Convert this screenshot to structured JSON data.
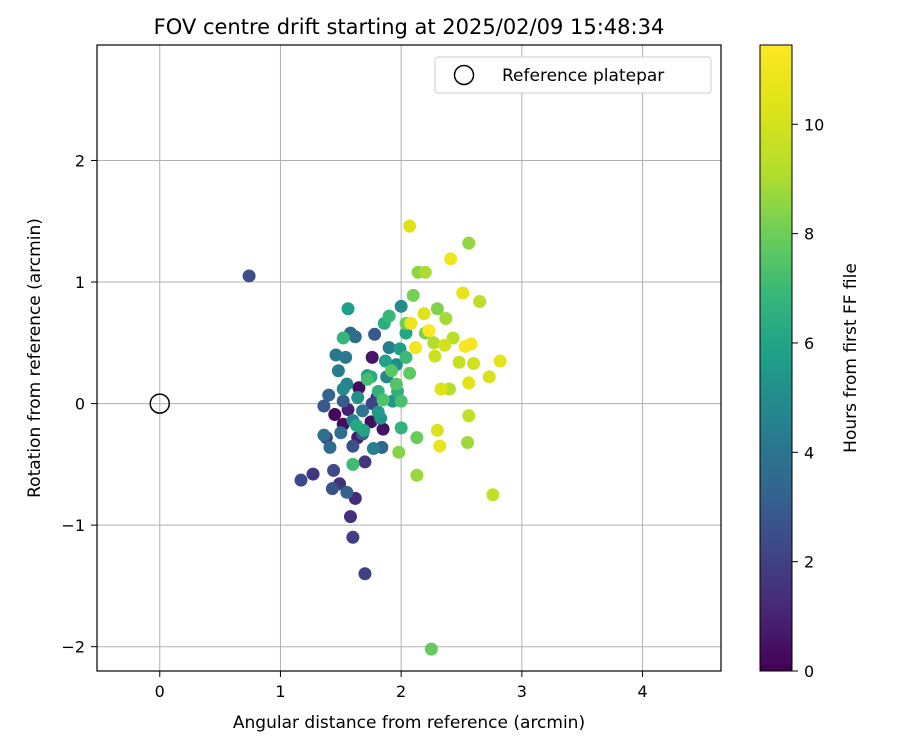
{
  "chart_data": {
    "type": "scatter",
    "title": "FOV centre drift starting at 2025/02/09 15:48:34",
    "xlabel": "Angular distance from reference (arcmin)",
    "ylabel": "Rotation from reference (arcmin)",
    "colorbar_label": "Hours from first FF file",
    "xlim": [
      -0.52,
      4.65
    ],
    "ylim": [
      -2.2,
      2.95
    ],
    "clim": [
      0,
      11.45
    ],
    "xticks": [
      0,
      1,
      2,
      3,
      4
    ],
    "yticks": [
      -2,
      -1,
      0,
      1,
      2
    ],
    "cticks": [
      0,
      2,
      4,
      6,
      8,
      10
    ],
    "grid": true,
    "colormap": "viridis",
    "legend": {
      "position": "top-right",
      "label": "Reference platepar"
    },
    "reference_point": {
      "x": 0,
      "y": 0
    },
    "points": [
      {
        "x": 1.45,
        "y": -0.09,
        "t": 0.2
      },
      {
        "x": 1.52,
        "y": -0.17,
        "t": 0.3
      },
      {
        "x": 1.65,
        "y": 0.13,
        "t": 0.3
      },
      {
        "x": 1.75,
        "y": -0.15,
        "t": 0.4
      },
      {
        "x": 1.85,
        "y": -0.21,
        "t": 0.5
      },
      {
        "x": 1.76,
        "y": 0.38,
        "t": 0.6
      },
      {
        "x": 1.64,
        "y": -0.28,
        "t": 0.8
      },
      {
        "x": 1.56,
        "y": -0.05,
        "t": 0.9
      },
      {
        "x": 1.8,
        "y": 0.05,
        "t": 1.0
      },
      {
        "x": 1.62,
        "y": -0.78,
        "t": 1.2
      },
      {
        "x": 1.58,
        "y": -0.93,
        "t": 1.4
      },
      {
        "x": 1.49,
        "y": -0.66,
        "t": 1.5
      },
      {
        "x": 1.7,
        "y": -0.48,
        "t": 1.6
      },
      {
        "x": 1.27,
        "y": -0.58,
        "t": 1.7
      },
      {
        "x": 1.38,
        "y": -0.28,
        "t": 1.8
      },
      {
        "x": 1.6,
        "y": -1.1,
        "t": 1.9
      },
      {
        "x": 1.7,
        "y": -1.4,
        "t": 2.0
      },
      {
        "x": 1.76,
        "y": 0.0,
        "t": 2.1
      },
      {
        "x": 1.17,
        "y": -0.63,
        "t": 2.3
      },
      {
        "x": 1.44,
        "y": -0.55,
        "t": 2.4
      },
      {
        "x": 0.74,
        "y": 1.05,
        "t": 2.5
      },
      {
        "x": 1.6,
        "y": -0.35,
        "t": 2.6
      },
      {
        "x": 1.43,
        "y": -0.7,
        "t": 2.7
      },
      {
        "x": 1.36,
        "y": -0.02,
        "t": 2.8
      },
      {
        "x": 1.78,
        "y": 0.57,
        "t": 2.9
      },
      {
        "x": 1.52,
        "y": 0.02,
        "t": 3.0
      },
      {
        "x": 1.68,
        "y": -0.25,
        "t": 3.1
      },
      {
        "x": 1.55,
        "y": -0.73,
        "t": 3.2
      },
      {
        "x": 1.4,
        "y": 0.07,
        "t": 3.3
      },
      {
        "x": 1.84,
        "y": -0.36,
        "t": 3.4
      },
      {
        "x": 1.58,
        "y": 0.58,
        "t": 3.5
      },
      {
        "x": 1.41,
        "y": -0.36,
        "t": 3.6
      },
      {
        "x": 1.5,
        "y": -0.24,
        "t": 3.7
      },
      {
        "x": 1.62,
        "y": 0.55,
        "t": 3.8
      },
      {
        "x": 1.36,
        "y": -0.26,
        "t": 3.9
      },
      {
        "x": 1.68,
        "y": -0.06,
        "t": 4.0
      },
      {
        "x": 1.46,
        "y": 0.4,
        "t": 4.1
      },
      {
        "x": 1.54,
        "y": 0.38,
        "t": 4.2
      },
      {
        "x": 1.48,
        "y": 0.27,
        "t": 4.3
      },
      {
        "x": 1.9,
        "y": 0.46,
        "t": 4.4
      },
      {
        "x": 1.77,
        "y": -0.37,
        "t": 4.5
      },
      {
        "x": 1.6,
        "y": -0.14,
        "t": 4.6
      },
      {
        "x": 1.55,
        "y": 0.16,
        "t": 4.7
      },
      {
        "x": 1.88,
        "y": 0.22,
        "t": 4.8
      },
      {
        "x": 1.52,
        "y": 0.12,
        "t": 4.9
      },
      {
        "x": 2.0,
        "y": 0.8,
        "t": 5.0
      },
      {
        "x": 1.96,
        "y": 0.32,
        "t": 5.1
      },
      {
        "x": 1.64,
        "y": 0.05,
        "t": 5.2
      },
      {
        "x": 1.83,
        "y": -0.12,
        "t": 5.3
      },
      {
        "x": 1.93,
        "y": 0.02,
        "t": 5.4
      },
      {
        "x": 1.72,
        "y": 0.23,
        "t": 5.5
      },
      {
        "x": 1.81,
        "y": -0.07,
        "t": 5.6
      },
      {
        "x": 1.99,
        "y": 0.45,
        "t": 5.7
      },
      {
        "x": 1.56,
        "y": 0.78,
        "t": 5.8
      },
      {
        "x": 1.87,
        "y": 0.35,
        "t": 5.9
      },
      {
        "x": 1.69,
        "y": -0.22,
        "t": 6.0
      },
      {
        "x": 2.04,
        "y": 0.58,
        "t": 6.1
      },
      {
        "x": 1.63,
        "y": -0.18,
        "t": 6.2
      },
      {
        "x": 1.75,
        "y": 0.22,
        "t": 6.3
      },
      {
        "x": 1.86,
        "y": 0.66,
        "t": 6.4
      },
      {
        "x": 1.97,
        "y": 0.1,
        "t": 6.5
      },
      {
        "x": 1.81,
        "y": 0.1,
        "t": 6.6
      },
      {
        "x": 2.0,
        "y": -0.2,
        "t": 6.7
      },
      {
        "x": 1.52,
        "y": 0.54,
        "t": 6.8
      },
      {
        "x": 1.9,
        "y": 0.72,
        "t": 6.9
      },
      {
        "x": 2.04,
        "y": 0.38,
        "t": 7.0
      },
      {
        "x": 1.6,
        "y": -0.5,
        "t": 7.1
      },
      {
        "x": 1.72,
        "y": 0.2,
        "t": 7.2
      },
      {
        "x": 2.0,
        "y": 0.02,
        "t": 7.3
      },
      {
        "x": 1.85,
        "y": 0.03,
        "t": 7.4
      },
      {
        "x": 1.96,
        "y": 0.16,
        "t": 7.5
      },
      {
        "x": 1.92,
        "y": 0.27,
        "t": 7.6
      },
      {
        "x": 2.07,
        "y": 0.25,
        "t": 7.7
      },
      {
        "x": 2.25,
        "y": -2.02,
        "t": 7.8
      },
      {
        "x": 2.13,
        "y": -0.28,
        "t": 7.9
      },
      {
        "x": 2.04,
        "y": 0.66,
        "t": 8.0
      },
      {
        "x": 2.1,
        "y": 0.89,
        "t": 8.1
      },
      {
        "x": 2.2,
        "y": 0.58,
        "t": 8.2
      },
      {
        "x": 2.3,
        "y": 0.78,
        "t": 8.3
      },
      {
        "x": 1.98,
        "y": -0.4,
        "t": 8.4
      },
      {
        "x": 2.14,
        "y": 1.08,
        "t": 8.5
      },
      {
        "x": 2.56,
        "y": 1.32,
        "t": 8.6
      },
      {
        "x": 2.13,
        "y": -0.59,
        "t": 8.7
      },
      {
        "x": 2.55,
        "y": -0.32,
        "t": 8.8
      },
      {
        "x": 2.37,
        "y": 0.7,
        "t": 8.9
      },
      {
        "x": 2.2,
        "y": 1.08,
        "t": 9.0
      },
      {
        "x": 2.27,
        "y": 0.5,
        "t": 9.1
      },
      {
        "x": 2.4,
        "y": 0.12,
        "t": 9.2
      },
      {
        "x": 2.43,
        "y": 0.54,
        "t": 9.3
      },
      {
        "x": 2.65,
        "y": 0.84,
        "t": 9.4
      },
      {
        "x": 2.56,
        "y": -0.1,
        "t": 9.5
      },
      {
        "x": 2.76,
        "y": -0.75,
        "t": 9.6
      },
      {
        "x": 2.48,
        "y": 0.34,
        "t": 9.7
      },
      {
        "x": 2.28,
        "y": 0.39,
        "t": 9.8
      },
      {
        "x": 2.6,
        "y": 0.33,
        "t": 9.9
      },
      {
        "x": 2.36,
        "y": 0.48,
        "t": 10.0
      },
      {
        "x": 2.73,
        "y": 0.22,
        "t": 10.1
      },
      {
        "x": 2.3,
        "y": -0.22,
        "t": 10.2
      },
      {
        "x": 2.33,
        "y": 0.12,
        "t": 10.3
      },
      {
        "x": 2.19,
        "y": 0.74,
        "t": 10.4
      },
      {
        "x": 2.56,
        "y": 0.17,
        "t": 10.5
      },
      {
        "x": 2.82,
        "y": 0.35,
        "t": 10.6
      },
      {
        "x": 2.51,
        "y": 0.91,
        "t": 10.7
      },
      {
        "x": 2.32,
        "y": -0.35,
        "t": 10.8
      },
      {
        "x": 2.08,
        "y": 0.66,
        "t": 10.9
      },
      {
        "x": 2.41,
        "y": 1.19,
        "t": 11.0
      },
      {
        "x": 2.12,
        "y": 0.46,
        "t": 11.1
      },
      {
        "x": 2.58,
        "y": 0.49,
        "t": 11.2
      },
      {
        "x": 2.07,
        "y": 1.46,
        "t": 10.3
      },
      {
        "x": 2.53,
        "y": 0.47,
        "t": 11.3
      },
      {
        "x": 2.23,
        "y": 0.6,
        "t": 11.4
      }
    ]
  }
}
